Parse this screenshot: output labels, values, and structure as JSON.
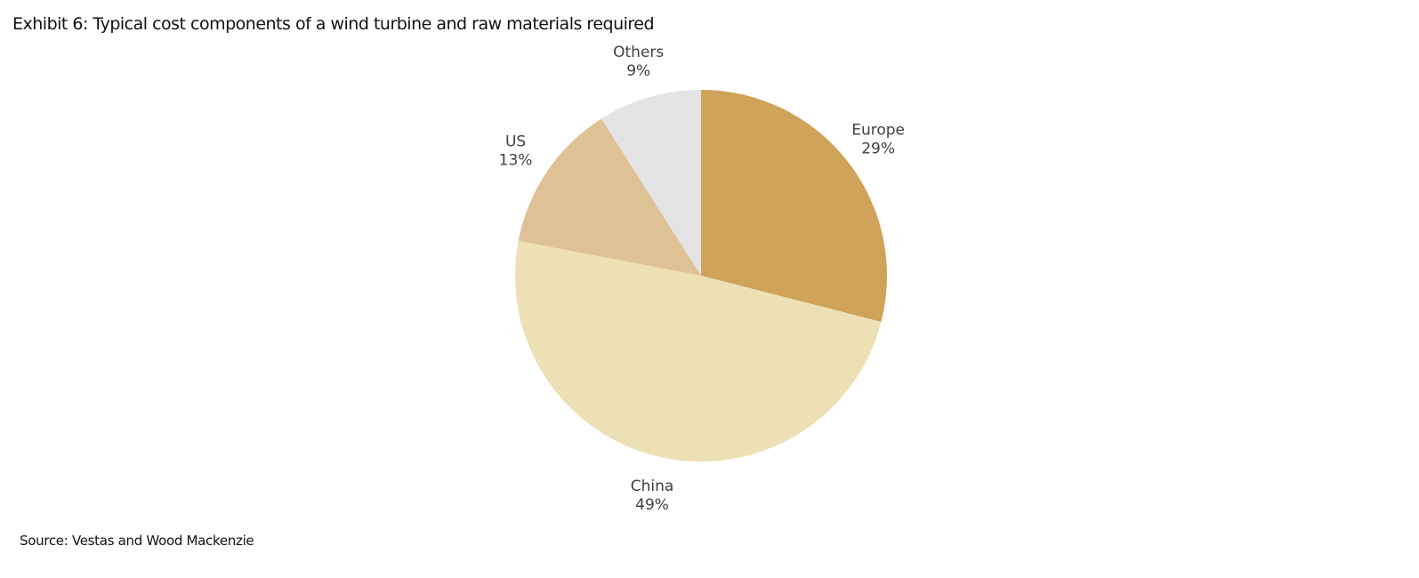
{
  "title": "Exhibit 6: Typical cost components of a wind turbine and raw materials required",
  "source": "Source: Vestas and Wood Mackenzie",
  "chart_data": {
    "type": "pie",
    "title": "Exhibit 6: Typical cost components of a wind turbine and raw materials required",
    "start": "top",
    "direction": "clockwise",
    "slices": [
      {
        "label": "Europe",
        "value": 29,
        "value_label": "29%",
        "color": "#CFA35A"
      },
      {
        "label": "China",
        "value": 49,
        "value_label": "49%",
        "color": "#EDE0B4"
      },
      {
        "label": "US",
        "value": 13,
        "value_label": "13%",
        "color": "#DFC196"
      },
      {
        "label": "Others",
        "value": 9,
        "value_label": "9%",
        "color": "#E4E3E3"
      }
    ]
  }
}
